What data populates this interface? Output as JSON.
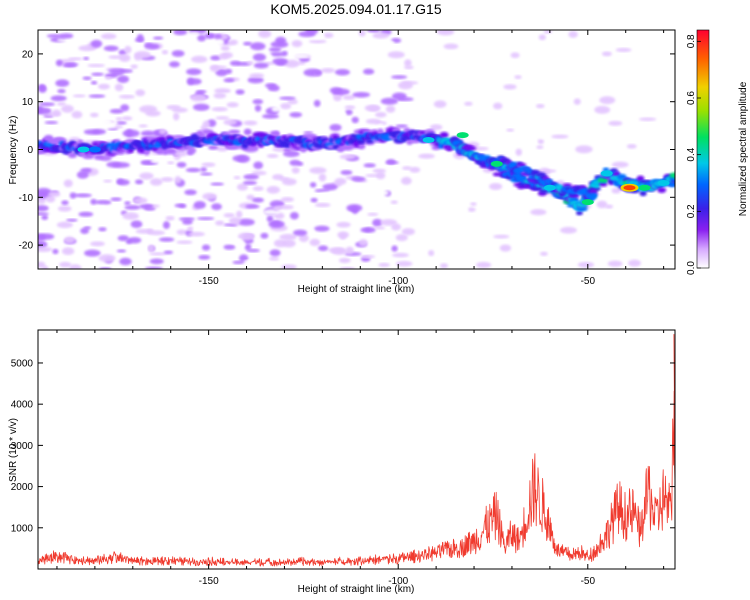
{
  "title": "KOM5.2025.094.01.17.G15",
  "colors": {
    "snr_line": "#f03a2e",
    "ridge": "#6a00f0",
    "noise_light": "#d9b3ff"
  },
  "colorbar": {
    "label": "Normalized spectral amplitude",
    "range": [
      0.0,
      0.84
    ],
    "ticks": [
      "0.0",
      "0.2",
      "0.4",
      "0.6",
      "0.8"
    ],
    "tick_values": [
      0.0,
      0.2,
      0.4,
      0.6,
      0.8
    ],
    "colormap": "rainbow (white-violet-blue-cyan-green-yellow-red)"
  },
  "chart_data": [
    {
      "type": "heatmap",
      "xlabel": "Height of straight line (km)",
      "ylabel": "Frequency (Hz)",
      "xlim": [
        -195,
        -27
      ],
      "ylim": [
        -25,
        25
      ],
      "x_ticks": [
        "-150",
        "-100",
        "-50"
      ],
      "x_tick_values": [
        -150,
        -100,
        -50
      ],
      "y_ticks": [
        "-20",
        "-10",
        "0",
        "10",
        "20"
      ],
      "y_tick_values": [
        -20,
        -10,
        0,
        10,
        20
      ],
      "ridge": {
        "x": [
          -195,
          -180,
          -165,
          -150,
          -135,
          -120,
          -105,
          -95,
          -85,
          -75,
          -68,
          -60,
          -52,
          -45,
          -40,
          -35,
          -30,
          -27
        ],
        "frequency": [
          1,
          0,
          1,
          2,
          2,
          1,
          3,
          3,
          1,
          -3,
          -6,
          -8,
          -12,
          -5,
          -7,
          -8,
          -7,
          -6
        ]
      },
      "ridge_branch": {
        "x": [
          -75,
          -65,
          -58,
          -52,
          -48
        ],
        "frequency": [
          -2,
          -5,
          -8,
          -9,
          -10
        ]
      },
      "peak": {
        "x": -39,
        "frequency": -8,
        "amplitude": 0.82
      }
    },
    {
      "type": "line",
      "xlabel": "Height of straight line (km)",
      "ylabel": "SNR (10 * v/v)",
      "xlim": [
        -195,
        -27
      ],
      "ylim": [
        0,
        5800
      ],
      "x_ticks": [
        "-150",
        "-100",
        "-50"
      ],
      "x_tick_values": [
        -150,
        -100,
        -50
      ],
      "y_ticks": [
        "1000",
        "2000",
        "3000",
        "4000",
        "5000"
      ],
      "y_tick_values": [
        1000,
        2000,
        3000,
        4000,
        5000
      ],
      "series": [
        {
          "x": [
            -195,
            -190,
            -185,
            -180,
            -175,
            -170,
            -165,
            -160,
            -155,
            -150,
            -145,
            -140,
            -135,
            -130,
            -125,
            -120,
            -115,
            -110,
            -105,
            -100,
            -97,
            -94,
            -91,
            -88,
            -85,
            -82,
            -79,
            -76,
            -74,
            -72,
            -70,
            -68,
            -66,
            -64,
            -62,
            -60,
            -58,
            -56,
            -54,
            -52,
            -50,
            -48,
            -46,
            -44,
            -42,
            -40,
            -38,
            -36,
            -34,
            -32,
            -30,
            -28,
            -27.3
          ],
          "values": [
            250,
            420,
            300,
            260,
            380,
            280,
            220,
            260,
            210,
            240,
            200,
            180,
            210,
            190,
            230,
            200,
            240,
            250,
            300,
            330,
            380,
            450,
            520,
            620,
            700,
            800,
            1100,
            1600,
            1900,
            800,
            1200,
            1000,
            2000,
            2900,
            2200,
            1400,
            600,
            500,
            450,
            550,
            400,
            600,
            1000,
            1500,
            2200,
            1800,
            2000,
            1300,
            2800,
            1700,
            2600,
            1900,
            5700
          ]
        }
      ]
    }
  ]
}
